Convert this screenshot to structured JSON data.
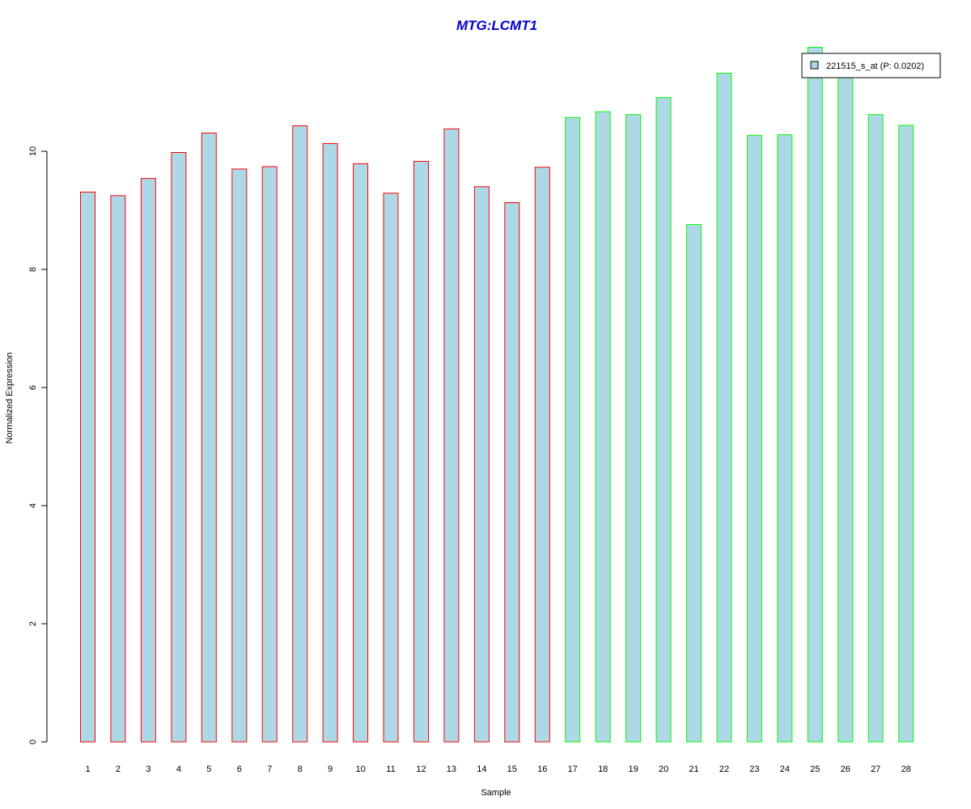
{
  "chart_data": {
    "type": "bar",
    "title": "MTG:LCMT1",
    "xlabel": "Sample",
    "ylabel": "Normalized Expression",
    "ylim": [
      0,
      11.75
    ],
    "yticks": [
      0,
      2,
      4,
      6,
      8,
      10
    ],
    "grid": false,
    "legend_position": "top-right",
    "categories": [
      "1",
      "2",
      "3",
      "4",
      "5",
      "6",
      "7",
      "8",
      "9",
      "10",
      "11",
      "12",
      "13",
      "14",
      "15",
      "16",
      "17",
      "18",
      "19",
      "20",
      "21",
      "22",
      "23",
      "24",
      "25",
      "26",
      "27",
      "28"
    ],
    "series": [
      {
        "name": "221515_s_at (P: 0.0202)",
        "fill": "#add8e6",
        "values": [
          9.31,
          9.25,
          9.54,
          9.98,
          10.31,
          9.7,
          9.74,
          10.43,
          10.13,
          9.79,
          9.29,
          9.83,
          10.38,
          9.4,
          9.13,
          9.73,
          10.57,
          10.67,
          10.62,
          10.91,
          8.76,
          11.32,
          10.27,
          10.28,
          11.76,
          11.26,
          10.62,
          10.44
        ],
        "outline_colors": [
          "#ff0000",
          "#ff0000",
          "#ff0000",
          "#ff0000",
          "#ff0000",
          "#ff0000",
          "#ff0000",
          "#ff0000",
          "#ff0000",
          "#ff0000",
          "#ff0000",
          "#ff0000",
          "#ff0000",
          "#ff0000",
          "#ff0000",
          "#ff0000",
          "#00ff00",
          "#00ff00",
          "#00ff00",
          "#00ff00",
          "#00ff00",
          "#00ff00",
          "#00ff00",
          "#00ff00",
          "#00ff00",
          "#00ff00",
          "#00ff00",
          "#00ff00"
        ]
      }
    ],
    "title_color": "#0000cd",
    "axis_color": "#000000"
  }
}
